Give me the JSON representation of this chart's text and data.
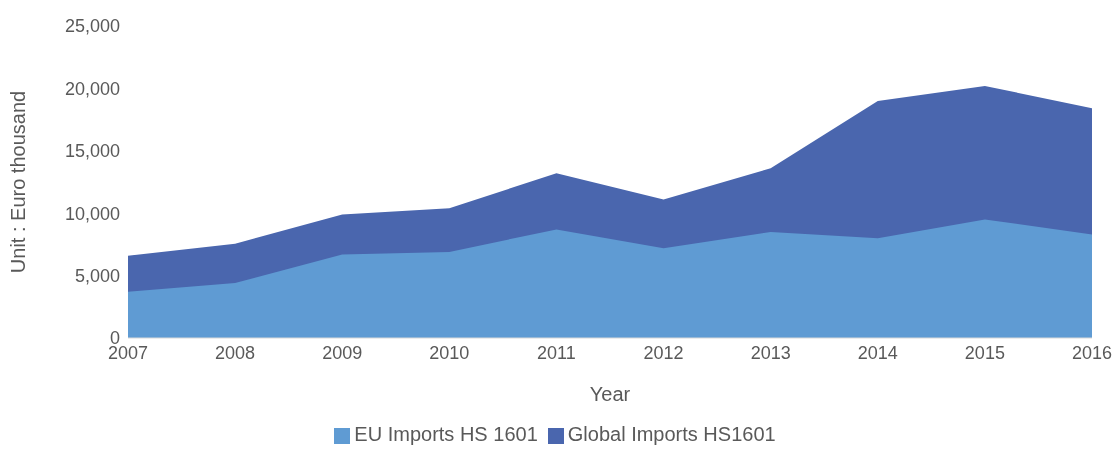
{
  "chart_data": {
    "type": "area",
    "xlabel": "Year",
    "ylabel": "Unit : Euro thousand",
    "categories": [
      "2007",
      "2008",
      "2009",
      "2010",
      "2011",
      "2012",
      "2013",
      "2014",
      "2015",
      "2016"
    ],
    "series": [
      {
        "name": "Global Imports HS1601",
        "color": "#4a66ae",
        "values": [
          6600,
          7550,
          9900,
          10400,
          13200,
          11100,
          13600,
          19000,
          20200,
          18400
        ]
      },
      {
        "name": "EU Imports HS 1601",
        "color": "#5f9bd3",
        "values": [
          3700,
          4400,
          6700,
          6900,
          8700,
          7200,
          8500,
          8000,
          9500,
          8300
        ]
      }
    ],
    "ylim": [
      0,
      25000
    ],
    "yticks": [
      {
        "value": 0,
        "label": "0"
      },
      {
        "value": 5000,
        "label": "5,000"
      },
      {
        "value": 10000,
        "label": "10,000"
      },
      {
        "value": 15000,
        "label": "15,000"
      },
      {
        "value": 20000,
        "label": "20,000"
      },
      {
        "value": 25000,
        "label": "25,000"
      }
    ],
    "legend": "bottom"
  }
}
